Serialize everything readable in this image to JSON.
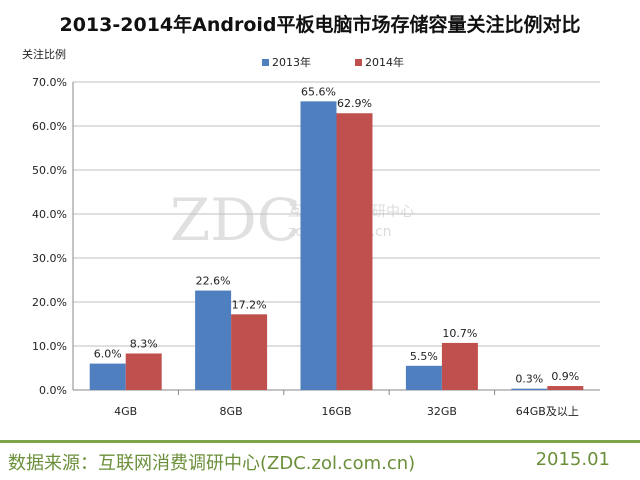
{
  "chart_data": {
    "type": "bar",
    "title": "2013-2014年Android平板电脑市场存储容量关注比例对比",
    "ylabel": "关注比例",
    "xlabel": "",
    "categories": [
      "4GB",
      "8GB",
      "16GB",
      "32GB",
      "64GB及以上"
    ],
    "series": [
      {
        "name": "2013年",
        "color": "#4f7fbf",
        "values": [
          6.0,
          22.6,
          65.6,
          5.5,
          0.3
        ]
      },
      {
        "name": "2014年",
        "color": "#c0504d",
        "values": [
          8.3,
          17.2,
          62.9,
          10.7,
          0.9
        ]
      }
    ],
    "ylim": [
      0,
      70
    ],
    "yticks": [
      "0.0%",
      "10.0%",
      "20.0%",
      "30.0%",
      "40.0%",
      "50.0%",
      "60.0%",
      "70.0%"
    ],
    "data_labels": [
      [
        "6.0%",
        "22.6%",
        "65.6%",
        "5.5%",
        "0.3%"
      ],
      [
        "8.3%",
        "17.2%",
        "62.9%",
        "10.7%",
        "0.9%"
      ]
    ],
    "grid": true,
    "legend_position": "top-center"
  },
  "watermark": {
    "logo": "ZDC",
    "line1": "互联网消费调研中心",
    "line2": "zdc.zol.com.cn"
  },
  "footer": {
    "source": "数据来源：互联网消费调研中心(ZDC.zol.com.cn)",
    "date": "2015.01"
  }
}
